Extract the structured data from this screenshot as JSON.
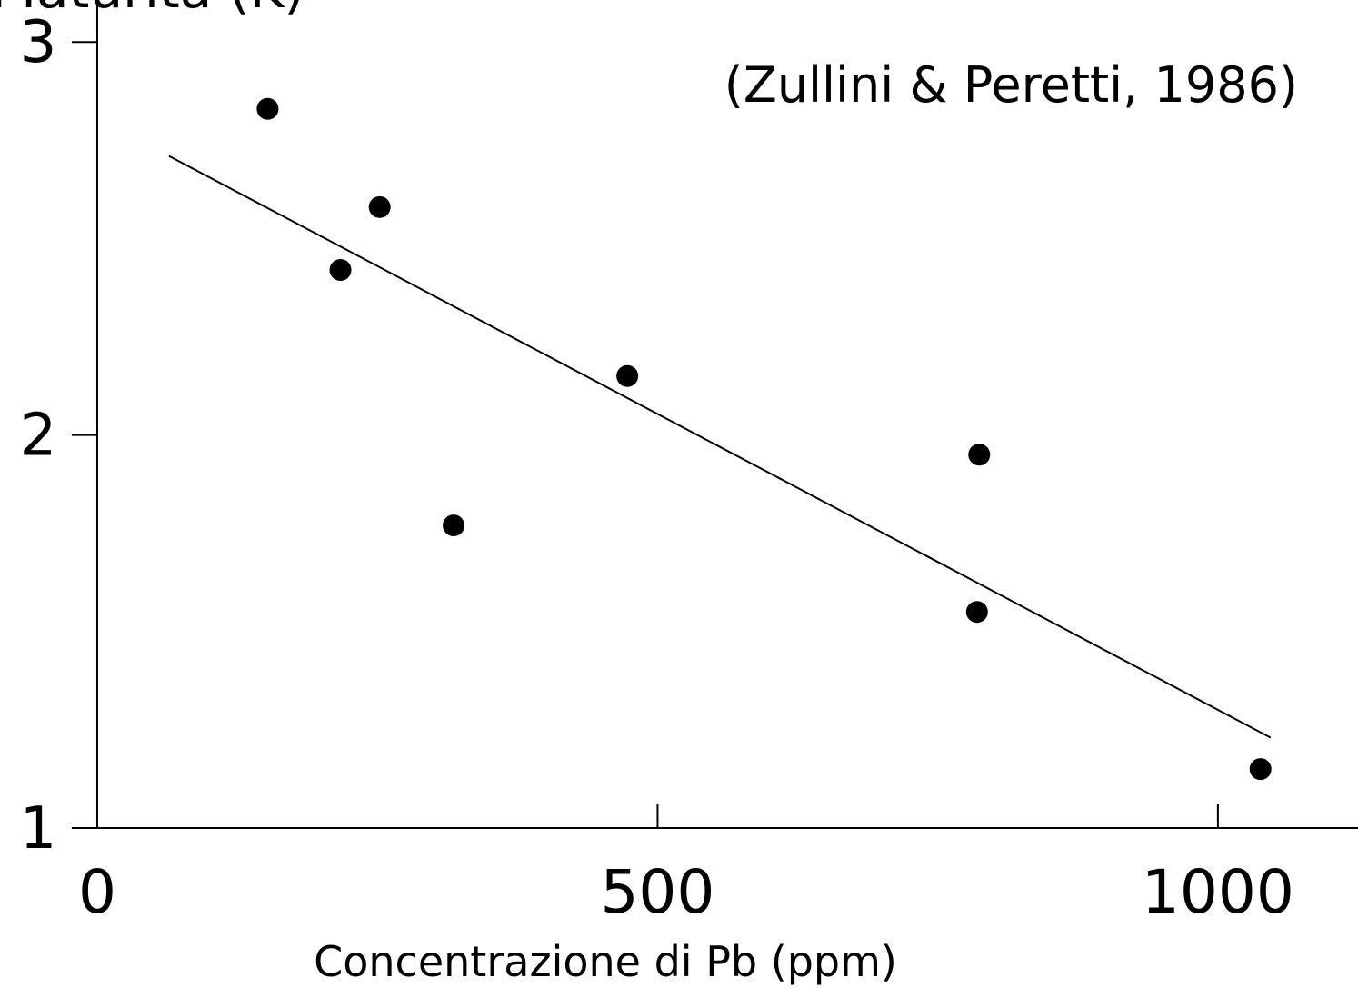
{
  "chart_data": {
    "type": "scatter",
    "y_label": "Maturità (K)",
    "x_label": "Concentrazione di Pb (ppm)",
    "annotation": "(Zullini & Peretti, 1986)",
    "x": [
      152,
      217,
      252,
      318,
      473,
      787,
      785,
      1038
    ],
    "values": [
      2.83,
      2.42,
      2.58,
      1.77,
      2.15,
      1.95,
      1.55,
      1.15
    ],
    "color": "#000000",
    "trend": {
      "x": [
        64,
        1047
      ],
      "values": [
        2.71,
        1.23
      ]
    },
    "xlim": [
      0,
      1125
    ],
    "ylim": [
      1,
      3.1
    ],
    "xticks": [
      0,
      500,
      1000
    ],
    "yticks": [
      1,
      2,
      3
    ]
  }
}
